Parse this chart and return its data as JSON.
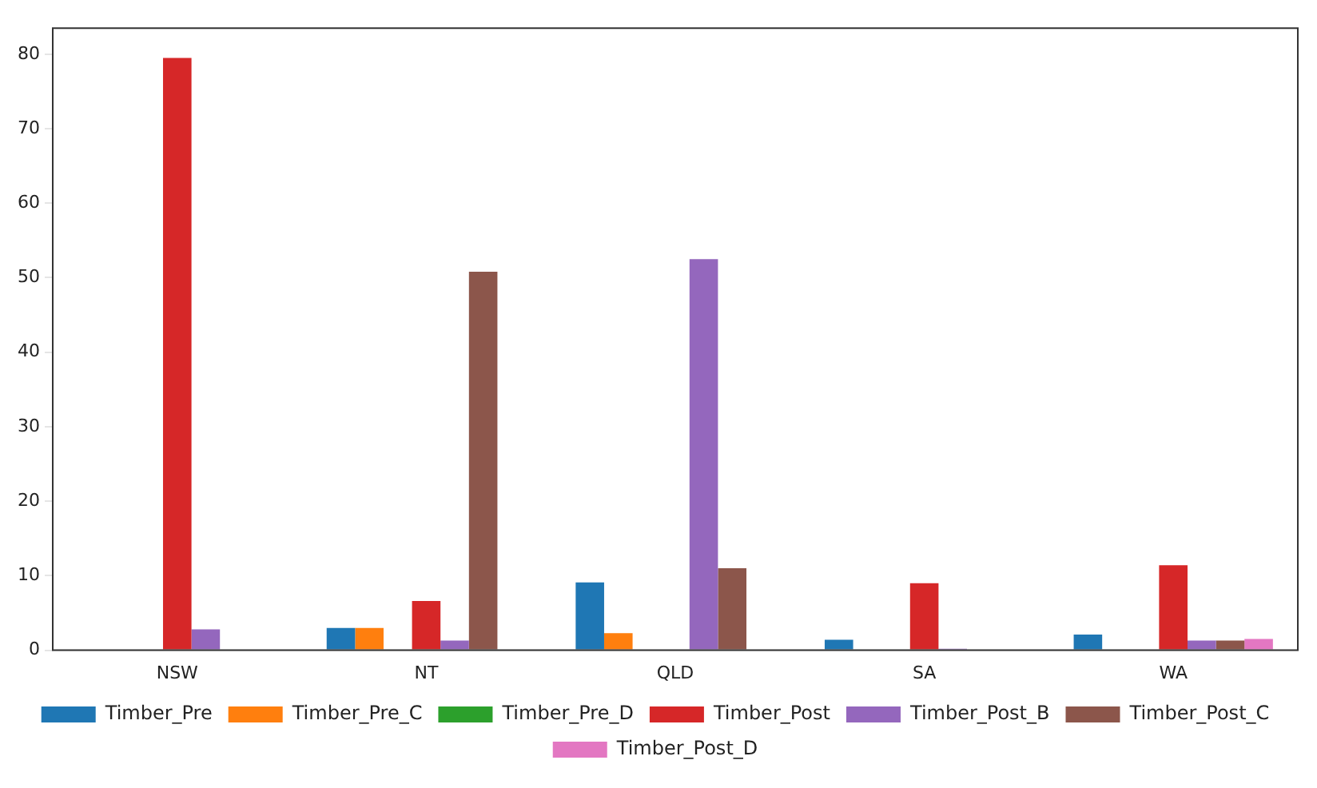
{
  "chart_data": {
    "type": "bar",
    "categories": [
      "NSW",
      "NT",
      "QLD",
      "SA",
      "WA"
    ],
    "series": [
      {
        "name": "Timber_Pre",
        "color": "#1f77b4",
        "values": [
          0,
          3.0,
          9.1,
          1.4,
          2.1
        ]
      },
      {
        "name": "Timber_Pre_C",
        "color": "#ff7f0e",
        "values": [
          0,
          3.0,
          2.3,
          0,
          0
        ]
      },
      {
        "name": "Timber_Pre_D",
        "color": "#2ca02c",
        "values": [
          0,
          0,
          0,
          0,
          0
        ]
      },
      {
        "name": "Timber_Post",
        "color": "#d62728",
        "values": [
          79.5,
          6.6,
          0,
          9.0,
          11.4
        ]
      },
      {
        "name": "Timber_Post_B",
        "color": "#9467bd",
        "values": [
          2.8,
          1.3,
          52.5,
          0.2,
          1.3
        ]
      },
      {
        "name": "Timber_Post_C",
        "color": "#8c564b",
        "values": [
          0,
          50.8,
          11.0,
          0,
          1.3
        ]
      },
      {
        "name": "Timber_Post_D",
        "color": "#e377c2",
        "values": [
          0,
          0,
          0,
          0,
          1.5
        ]
      }
    ],
    "ylim": [
      0,
      83.5
    ],
    "yticks": [
      0,
      10,
      20,
      30,
      40,
      50,
      60,
      70,
      80
    ],
    "grid": false,
    "legend": "bottom"
  }
}
